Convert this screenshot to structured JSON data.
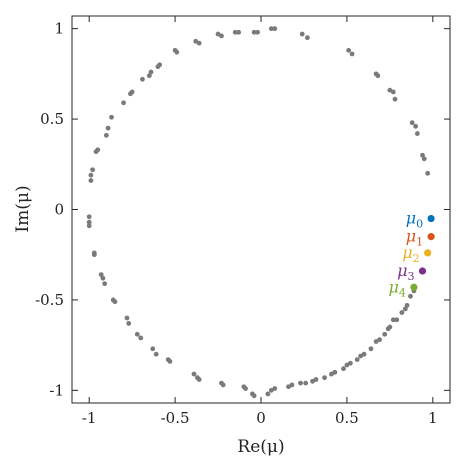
{
  "chart_data": {
    "type": "scatter",
    "title": "",
    "xlabel": "Re(μ)",
    "ylabel": "Im(μ)",
    "xlim": [
      -1.1,
      1.1
    ],
    "ylim": [
      -1.07,
      1.07
    ],
    "xticks": [
      -1,
      -0.5,
      0,
      0.5,
      1
    ],
    "yticks": [
      -1,
      -0.5,
      0,
      0.5,
      1
    ],
    "xtick_labels": [
      "-1",
      "-0.5",
      "0",
      "0.5",
      "1"
    ],
    "ytick_labels": [
      "-1",
      "-0.5",
      "0",
      "0.5",
      "1"
    ],
    "grid": false,
    "point_color": "#7a7a7a",
    "points": [
      [
        0.08,
        1.0
      ],
      [
        0.06,
        1.0
      ],
      [
        -0.02,
        0.98
      ],
      [
        -0.04,
        0.98
      ],
      [
        -0.13,
        0.98
      ],
      [
        -0.15,
        0.98
      ],
      [
        -0.25,
        0.97
      ],
      [
        -0.23,
        0.96
      ],
      [
        0.24,
        0.97
      ],
      [
        0.27,
        0.95
      ],
      [
        -0.38,
        0.93
      ],
      [
        -0.36,
        0.92
      ],
      [
        -0.5,
        0.88
      ],
      [
        -0.49,
        0.87
      ],
      [
        0.51,
        0.88
      ],
      [
        0.53,
        0.86
      ],
      [
        -0.59,
        0.8
      ],
      [
        -0.6,
        0.79
      ],
      [
        -0.64,
        0.76
      ],
      [
        -0.65,
        0.74
      ],
      [
        -0.69,
        0.72
      ],
      [
        -0.75,
        0.65
      ],
      [
        -0.76,
        0.64
      ],
      [
        -0.8,
        0.59
      ],
      [
        0.67,
        0.75
      ],
      [
        0.68,
        0.74
      ],
      [
        0.75,
        0.66
      ],
      [
        0.77,
        0.65
      ],
      [
        0.78,
        0.61
      ],
      [
        -0.87,
        0.51
      ],
      [
        -0.89,
        0.45
      ],
      [
        -0.9,
        0.41
      ],
      [
        -0.95,
        0.33
      ],
      [
        -0.96,
        0.32
      ],
      [
        0.88,
        0.48
      ],
      [
        0.9,
        0.46
      ],
      [
        0.91,
        0.42
      ],
      [
        0.94,
        0.3
      ],
      [
        0.95,
        0.28
      ],
      [
        -0.98,
        0.22
      ],
      [
        -0.99,
        0.19
      ],
      [
        -0.99,
        0.16
      ],
      [
        0.97,
        0.2
      ],
      [
        -1.0,
        -0.04
      ],
      [
        -1.0,
        -0.07
      ],
      [
        -1.0,
        -0.09
      ],
      [
        -0.97,
        -0.24
      ],
      [
        -0.97,
        -0.25
      ],
      [
        -0.93,
        -0.36
      ],
      [
        -0.92,
        -0.38
      ],
      [
        -0.91,
        -0.41
      ],
      [
        -0.86,
        -0.5
      ],
      [
        -0.85,
        -0.51
      ],
      [
        -0.78,
        -0.6
      ],
      [
        -0.77,
        -0.63
      ],
      [
        -0.72,
        -0.69
      ],
      [
        -0.7,
        -0.71
      ],
      [
        -0.63,
        -0.77
      ],
      [
        -0.61,
        -0.8
      ],
      [
        -0.54,
        -0.83
      ],
      [
        -0.53,
        -0.84
      ],
      [
        -0.39,
        -0.91
      ],
      [
        -0.37,
        -0.93
      ],
      [
        -0.36,
        -0.94
      ],
      [
        -0.23,
        -0.96
      ],
      [
        -0.22,
        -0.97
      ],
      [
        -0.1,
        -0.98
      ],
      [
        -0.09,
        -0.99
      ],
      [
        -0.05,
        -1.02
      ],
      [
        -0.04,
        -1.03
      ],
      [
        0.04,
        -1.02
      ],
      [
        0.06,
        -1.0
      ],
      [
        0.08,
        -0.99
      ],
      [
        0.16,
        -0.98
      ],
      [
        0.18,
        -0.97
      ],
      [
        0.23,
        -0.96
      ],
      [
        0.26,
        -0.96
      ],
      [
        0.3,
        -0.95
      ],
      [
        0.32,
        -0.94
      ],
      [
        0.37,
        -0.93
      ],
      [
        0.41,
        -0.91
      ],
      [
        0.43,
        -0.9
      ],
      [
        0.48,
        -0.88
      ],
      [
        0.5,
        -0.86
      ],
      [
        0.52,
        -0.85
      ],
      [
        0.56,
        -0.83
      ],
      [
        0.58,
        -0.81
      ],
      [
        0.6,
        -0.8
      ],
      [
        0.64,
        -0.77
      ],
      [
        0.67,
        -0.73
      ],
      [
        0.69,
        -0.72
      ],
      [
        0.72,
        -0.69
      ],
      [
        0.74,
        -0.66
      ],
      [
        0.75,
        -0.65
      ],
      [
        0.77,
        -0.61
      ],
      [
        0.79,
        -0.61
      ],
      [
        0.82,
        -0.57
      ],
      [
        0.84,
        -0.55
      ],
      [
        0.85,
        -0.53
      ],
      [
        0.89,
        -0.45
      ],
      [
        0.87,
        -0.48
      ]
    ],
    "highlighted": [
      {
        "name": "μ",
        "sub": "0",
        "x": 0.99,
        "y": -0.05,
        "color": "#0072bd"
      },
      {
        "name": "μ",
        "sub": "1",
        "x": 0.99,
        "y": -0.15,
        "color": "#d95319"
      },
      {
        "name": "μ",
        "sub": "2",
        "x": 0.97,
        "y": -0.24,
        "color": "#edb120"
      },
      {
        "name": "μ",
        "sub": "3",
        "x": 0.94,
        "y": -0.34,
        "color": "#7e2f8e"
      },
      {
        "name": "μ",
        "sub": "4",
        "x": 0.89,
        "y": -0.43,
        "color": "#77ac30"
      }
    ]
  }
}
